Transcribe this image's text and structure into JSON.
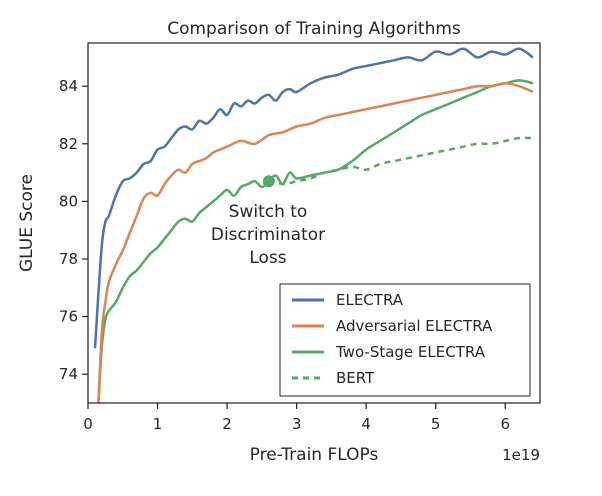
{
  "chart_data": {
    "type": "line",
    "title": "Comparison of Training Algorithms",
    "xlabel": "Pre-Train FLOPs",
    "ylabel": "GLUE Score",
    "x_multiplier_label": "1e19",
    "xlim": [
      0,
      6.5
    ],
    "ylim": [
      73,
      85.5
    ],
    "xticks": [
      0,
      1,
      2,
      3,
      4,
      5,
      6
    ],
    "yticks": [
      74,
      76,
      78,
      80,
      82,
      84
    ],
    "series": [
      {
        "name": "ELECTRA",
        "color": "#4c72b0",
        "dashed": false,
        "x": [
          0.1,
          0.15,
          0.2,
          0.25,
          0.3,
          0.4,
          0.5,
          0.6,
          0.7,
          0.8,
          0.9,
          1.0,
          1.1,
          1.2,
          1.3,
          1.4,
          1.5,
          1.6,
          1.7,
          1.8,
          1.9,
          2.0,
          2.1,
          2.2,
          2.3,
          2.4,
          2.5,
          2.6,
          2.7,
          2.8,
          2.9,
          3.0,
          3.2,
          3.4,
          3.6,
          3.8,
          4.0,
          4.2,
          4.4,
          4.6,
          4.8,
          5.0,
          5.2,
          5.4,
          5.6,
          5.8,
          6.0,
          6.2,
          6.4
        ],
        "values": [
          74.9,
          76.8,
          78.5,
          79.3,
          79.5,
          80.2,
          80.7,
          80.8,
          81.0,
          81.3,
          81.4,
          81.8,
          81.9,
          82.2,
          82.5,
          82.6,
          82.5,
          82.8,
          82.7,
          82.9,
          83.2,
          83.0,
          83.4,
          83.3,
          83.5,
          83.4,
          83.6,
          83.7,
          83.5,
          83.8,
          83.9,
          83.8,
          84.1,
          84.3,
          84.4,
          84.6,
          84.7,
          84.8,
          84.9,
          85.0,
          84.9,
          85.2,
          85.1,
          85.3,
          85.0,
          85.2,
          85.1,
          85.3,
          85.0
        ]
      },
      {
        "name": "Adversarial ELECTRA",
        "color": "#dd8452",
        "dashed": false,
        "x": [
          0.15,
          0.2,
          0.25,
          0.3,
          0.4,
          0.5,
          0.6,
          0.7,
          0.8,
          0.9,
          1.0,
          1.1,
          1.2,
          1.3,
          1.4,
          1.5,
          1.6,
          1.7,
          1.8,
          1.9,
          2.0,
          2.2,
          2.4,
          2.6,
          2.8,
          3.0,
          3.2,
          3.4,
          3.6,
          3.8,
          4.0,
          4.2,
          4.4,
          4.6,
          4.8,
          5.0,
          5.2,
          5.4,
          5.6,
          5.8,
          6.0,
          6.2,
          6.4
        ],
        "values": [
          73.0,
          75.5,
          76.5,
          77.2,
          77.8,
          78.3,
          78.9,
          79.5,
          80.1,
          80.3,
          80.2,
          80.6,
          80.9,
          81.1,
          81.0,
          81.3,
          81.4,
          81.5,
          81.7,
          81.8,
          81.9,
          82.1,
          82.0,
          82.3,
          82.4,
          82.6,
          82.7,
          82.9,
          83.0,
          83.1,
          83.2,
          83.3,
          83.4,
          83.5,
          83.6,
          83.7,
          83.8,
          83.9,
          84.0,
          84.0,
          84.1,
          84.0,
          83.8
        ]
      },
      {
        "name": "Two-Stage ELECTRA",
        "color": "#55a868",
        "dashed": false,
        "x": [
          0.15,
          0.2,
          0.25,
          0.3,
          0.4,
          0.5,
          0.6,
          0.7,
          0.8,
          0.9,
          1.0,
          1.1,
          1.2,
          1.3,
          1.4,
          1.5,
          1.6,
          1.7,
          1.8,
          1.9,
          2.0,
          2.1,
          2.2,
          2.3,
          2.4,
          2.5,
          2.6,
          2.7,
          2.8,
          2.9,
          3.0,
          3.2,
          3.4,
          3.6,
          3.8,
          4.0,
          4.2,
          4.4,
          4.6,
          4.8,
          5.0,
          5.2,
          5.4,
          5.6,
          5.8,
          6.0,
          6.2,
          6.4
        ],
        "values": [
          73.0,
          75.0,
          75.9,
          76.2,
          76.5,
          77.0,
          77.4,
          77.6,
          77.9,
          78.2,
          78.4,
          78.7,
          79.0,
          79.3,
          79.4,
          79.3,
          79.6,
          79.8,
          80.0,
          80.2,
          80.4,
          80.2,
          80.5,
          80.6,
          80.7,
          80.5,
          80.7,
          80.9,
          80.6,
          81.0,
          80.8,
          80.9,
          81.0,
          81.1,
          81.4,
          81.8,
          82.1,
          82.4,
          82.7,
          83.0,
          83.2,
          83.4,
          83.6,
          83.8,
          84.0,
          84.1,
          84.2,
          84.1
        ]
      },
      {
        "name": "BERT",
        "color": "#55a868",
        "dashed": true,
        "x": [
          2.6,
          2.8,
          3.0,
          3.2,
          3.4,
          3.6,
          3.8,
          4.0,
          4.2,
          4.4,
          4.6,
          4.8,
          5.0,
          5.2,
          5.4,
          5.6,
          5.8,
          6.0,
          6.2,
          6.4
        ],
        "values": [
          80.8,
          80.6,
          80.7,
          80.8,
          81.0,
          81.1,
          81.2,
          81.1,
          81.3,
          81.4,
          81.5,
          81.6,
          81.7,
          81.8,
          81.9,
          82.0,
          82.0,
          82.1,
          82.2,
          82.2
        ]
      }
    ],
    "annotation": {
      "lines": [
        "Switch to",
        "Discriminator",
        "Loss"
      ],
      "point": {
        "x": 2.6,
        "y": 80.7
      },
      "color": "#55a868"
    },
    "legend_position": "bottom-right"
  }
}
